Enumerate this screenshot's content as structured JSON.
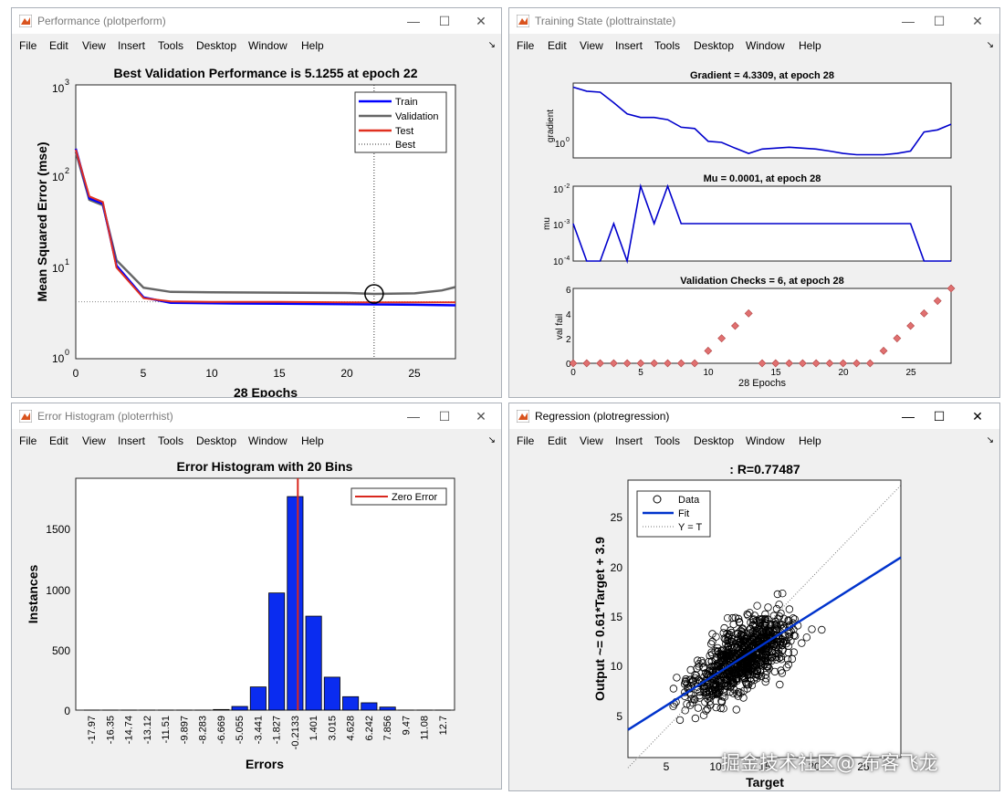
{
  "menu": [
    "File",
    "Edit",
    "View",
    "Insert",
    "Tools",
    "Desktop",
    "Window",
    "Help"
  ],
  "window_controls": {
    "minimize": "—",
    "maximize": "☐",
    "close": "✕",
    "dock": "↘"
  },
  "perform": {
    "title": "Performance (plotperform)",
    "plot_title": "Best Validation Performance is 5.1255 at epoch 22",
    "ylabel": "Mean Squared Error  (mse)",
    "xlabel": "28 Epochs",
    "yticks": [
      "10",
      "10",
      "10",
      "10"
    ],
    "yexps": [
      "3",
      "2",
      "1",
      "0"
    ],
    "xticks": [
      "0",
      "5",
      "10",
      "15",
      "20",
      "25"
    ],
    "legend": [
      "Train",
      "Validation",
      "Test",
      "Best"
    ],
    "colors": {
      "train": "#0000ff",
      "validation": "#666666",
      "test": "#e03020",
      "best": "#333333"
    },
    "chart_data": {
      "type": "line",
      "yscale": "log",
      "ylim": [
        1,
        1000
      ],
      "xlim": [
        0,
        28
      ],
      "best_epoch": 22,
      "best_value": 5.1255,
      "series": [
        {
          "name": "Train",
          "x": [
            0,
            1,
            2,
            3,
            5,
            7,
            10,
            15,
            20,
            25,
            28
          ],
          "y": [
            200,
            57,
            50,
            10.5,
            4.7,
            4.1,
            4.05,
            4.0,
            3.95,
            3.9,
            3.85
          ]
        },
        {
          "name": "Validation",
          "x": [
            0,
            1,
            2,
            3,
            5,
            7,
            10,
            15,
            20,
            22,
            25,
            27,
            28
          ],
          "y": [
            185,
            55,
            48,
            12,
            6,
            5.4,
            5.35,
            5.3,
            5.25,
            5.1255,
            5.2,
            5.6,
            6.1
          ]
        },
        {
          "name": "Test",
          "x": [
            0,
            1,
            2,
            3,
            5,
            7,
            10,
            15,
            20,
            25,
            28
          ],
          "y": [
            195,
            60,
            52,
            10,
            4.6,
            4.25,
            4.2,
            4.2,
            4.15,
            4.15,
            4.15
          ]
        }
      ]
    }
  },
  "train": {
    "title": "Training State (plottrainstate)",
    "grad_title": "Gradient = 4.3309, at epoch 28",
    "mu_title": "Mu = 0.0001, at epoch 28",
    "val_title": "Validation Checks = 6, at epoch 28",
    "grad_ylabel": "gradient",
    "mu_ylabel": "mu",
    "val_ylabel": "val fail",
    "xlabel": "28 Epochs",
    "grad_ytick": "10",
    "grad_yexp": "0",
    "mu_yticks": [
      "10",
      "10",
      "10"
    ],
    "mu_yexps": [
      "-2",
      "-3",
      "-4"
    ],
    "val_yticks": [
      "6",
      "4",
      "2",
      "0"
    ],
    "xticks": [
      "0",
      "5",
      "10",
      "15",
      "20",
      "25"
    ],
    "colors": {
      "line": "#0000cc",
      "marker": "#e07070"
    },
    "chart_data": {
      "type": "line",
      "gradient": {
        "x": [
          0,
          1,
          2,
          3,
          4,
          5,
          6,
          7,
          8,
          9,
          10,
          11,
          12,
          13,
          14,
          15,
          16,
          17,
          18,
          19,
          20,
          21,
          22,
          23,
          24,
          25,
          26,
          27,
          28
        ],
        "y": [
          60,
          45,
          42,
          20,
          9,
          7,
          7,
          6,
          3.5,
          3.2,
          1.3,
          1.2,
          0.8,
          0.55,
          0.75,
          0.8,
          0.85,
          0.8,
          0.75,
          0.65,
          0.55,
          0.5,
          0.5,
          0.5,
          0.55,
          0.65,
          2.5,
          2.9,
          4.3309
        ]
      },
      "mu": {
        "x": [
          0,
          1,
          2,
          3,
          4,
          5,
          6,
          7,
          8,
          9,
          10,
          11,
          12,
          13,
          14,
          15,
          16,
          17,
          18,
          19,
          20,
          21,
          22,
          23,
          24,
          25,
          26,
          27,
          28
        ],
        "y": [
          0.001,
          0.0001,
          0.0001,
          0.001,
          0.0001,
          0.01,
          0.001,
          0.01,
          0.001,
          0.001,
          0.001,
          0.001,
          0.001,
          0.001,
          0.001,
          0.001,
          0.001,
          0.001,
          0.001,
          0.001,
          0.001,
          0.001,
          0.001,
          0.001,
          0.001,
          0.001,
          0.0001,
          0.0001,
          0.0001
        ]
      },
      "val_checks": {
        "x": [
          0,
          1,
          2,
          3,
          4,
          5,
          6,
          7,
          8,
          9,
          10,
          11,
          12,
          13,
          14,
          15,
          16,
          17,
          18,
          19,
          20,
          21,
          22,
          23,
          24,
          25,
          26,
          27,
          28
        ],
        "y": [
          0,
          0,
          0,
          0,
          0,
          0,
          0,
          0,
          0,
          0,
          1,
          2,
          3,
          4,
          0,
          0,
          0,
          0,
          0,
          0,
          0,
          0,
          0,
          1,
          2,
          3,
          4,
          5,
          6
        ]
      }
    }
  },
  "hist": {
    "title": "Error Histogram (ploterrhist)",
    "plot_title": "Error Histogram with 20 Bins",
    "ylabel": "Instances",
    "xlabel": "Errors",
    "yticks": [
      "1500",
      "1000",
      "500",
      "0"
    ],
    "legend": "Zero Error",
    "colors": {
      "bar": "#0a2cf0",
      "zero": "#d9281e"
    },
    "chart_data": {
      "type": "bar",
      "categories": [
        "-17.97",
        "-16.35",
        "-14.74",
        "-13.12",
        "-11.51",
        "-9.897",
        "-8.283",
        "-6.669",
        "-5.055",
        "-3.441",
        "-1.827",
        "-0.2133",
        "1.401",
        "3.015",
        "4.628",
        "6.242",
        "7.856",
        "9.47",
        "11.08",
        "12.7"
      ],
      "values": [
        0,
        0,
        0,
        0,
        0,
        0,
        0,
        5,
        30,
        190,
        960,
        1750,
        770,
        270,
        110,
        60,
        25,
        0,
        0,
        0
      ],
      "ylim": [
        0,
        1900
      ]
    }
  },
  "regr": {
    "title": "Regression (plotregression)",
    "plot_title": ": R=0.77487",
    "ylabel": "Output ~= 0.61*Target + 3.9",
    "xlabel": "Target",
    "yticks": [
      "25",
      "20",
      "15",
      "10",
      "5"
    ],
    "xticks": [
      "5",
      "10",
      "15",
      "20",
      "25"
    ],
    "legend": [
      "Data",
      "Fit",
      "Y = T"
    ],
    "colors": {
      "fit": "#0033cc",
      "data": "#000000",
      "ident": "#777777"
    },
    "chart_data": {
      "type": "scatter",
      "xlim": [
        0.5,
        28
      ],
      "ylim": [
        1.5,
        28.5
      ],
      "fit": {
        "slope": 0.61,
        "intercept": 3.9
      },
      "R": 0.77487
    }
  },
  "watermark": "掘金技术社区@ 布客飞龙"
}
